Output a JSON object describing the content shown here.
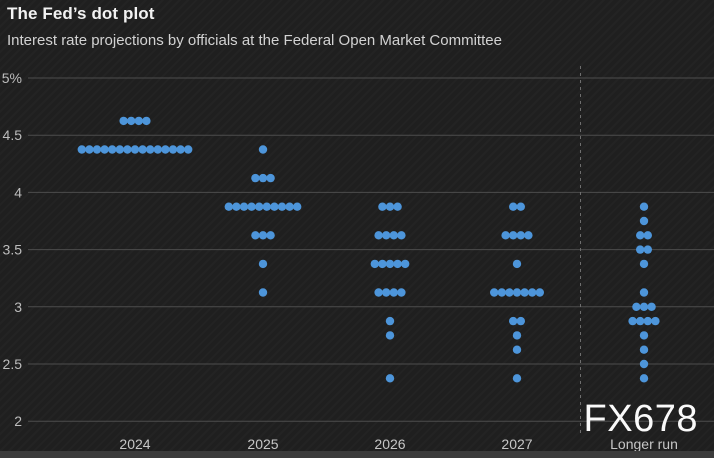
{
  "header": {
    "title": "The Fed’s dot plot",
    "subtitle": "Interest rate projections by officials at the Federal Open Market Committee"
  },
  "watermark": "FX678",
  "colors": {
    "background": "#1f1f1f",
    "dot": "#4d95da",
    "gridline": "#4d4d4d",
    "separator": "#6e6e6e",
    "y_tick_text": "#bdbdbd",
    "x_tick_text": "#c6c6c6",
    "title_text": "#f2f2f2",
    "subtitle_text": "#d2d2d2",
    "watermark_text": "#fafafa",
    "footer_bar": "#3b3b3b"
  },
  "chart_data": {
    "type": "scatter",
    "title": "The Fed’s dot plot",
    "subtitle": "Interest rate projections by officials at the Federal Open Market Committee",
    "xlabel": "",
    "ylabel": "",
    "ylim": [
      1.75,
      5.1
    ],
    "yticks": [
      5,
      4.5,
      4,
      3.5,
      3,
      2.5,
      2
    ],
    "ytick_labels": [
      "5%",
      "4.5",
      "4",
      "3.5",
      "3",
      "2.5",
      "2"
    ],
    "grid": "horizontal",
    "legend": "none",
    "categories": [
      "2024",
      "2025",
      "2026",
      "2027",
      "Longer run"
    ],
    "separator_before_category": "Longer run",
    "series": [
      {
        "name": "2024",
        "dots": [
          {
            "rate": 4.625,
            "count": 4
          },
          {
            "rate": 4.375,
            "count": 15
          }
        ]
      },
      {
        "name": "2025",
        "dots": [
          {
            "rate": 4.375,
            "count": 1
          },
          {
            "rate": 4.125,
            "count": 3
          },
          {
            "rate": 3.875,
            "count": 10
          },
          {
            "rate": 3.625,
            "count": 3
          },
          {
            "rate": 3.375,
            "count": 1
          },
          {
            "rate": 3.125,
            "count": 1
          }
        ]
      },
      {
        "name": "2026",
        "dots": [
          {
            "rate": 3.875,
            "count": 3
          },
          {
            "rate": 3.625,
            "count": 4
          },
          {
            "rate": 3.375,
            "count": 5
          },
          {
            "rate": 3.125,
            "count": 4
          },
          {
            "rate": 2.875,
            "count": 1
          },
          {
            "rate": 2.75,
            "count": 1
          },
          {
            "rate": 2.375,
            "count": 1
          }
        ]
      },
      {
        "name": "2027",
        "dots": [
          {
            "rate": 3.875,
            "count": 2
          },
          {
            "rate": 3.625,
            "count": 4
          },
          {
            "rate": 3.375,
            "count": 1
          },
          {
            "rate": 3.125,
            "count": 7
          },
          {
            "rate": 2.875,
            "count": 2
          },
          {
            "rate": 2.75,
            "count": 1
          },
          {
            "rate": 2.625,
            "count": 1
          },
          {
            "rate": 2.375,
            "count": 1
          }
        ]
      },
      {
        "name": "Longer run",
        "dots": [
          {
            "rate": 3.875,
            "count": 1
          },
          {
            "rate": 3.75,
            "count": 1
          },
          {
            "rate": 3.625,
            "count": 2
          },
          {
            "rate": 3.5,
            "count": 2
          },
          {
            "rate": 3.375,
            "count": 1
          },
          {
            "rate": 3.125,
            "count": 1
          },
          {
            "rate": 3.0,
            "count": 3
          },
          {
            "rate": 2.875,
            "count": 4
          },
          {
            "rate": 2.75,
            "count": 1
          },
          {
            "rate": 2.625,
            "count": 1
          },
          {
            "rate": 2.5,
            "count": 1
          },
          {
            "rate": 2.375,
            "count": 1
          }
        ]
      }
    ]
  }
}
